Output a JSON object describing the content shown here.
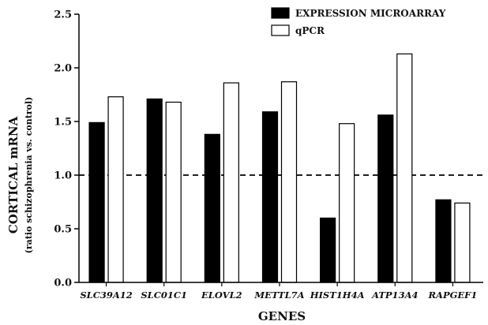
{
  "chart_data": {
    "type": "bar",
    "xlabel": "GENES",
    "ylabel": "CORTICAL mRNA",
    "ylabel_sub": "(ratio schizophrenia vs. control)",
    "categories": [
      "SLC39A12",
      "SLC01C1",
      "ELOVL2",
      "METTL7A",
      "HIST1H4A",
      "ATP13A4",
      "RAPGEF1"
    ],
    "series": [
      {
        "name": "EXPRESSION MICROARRAY",
        "values": [
          1.49,
          1.71,
          1.38,
          1.59,
          0.6,
          1.56,
          0.77
        ],
        "color": "#000000"
      },
      {
        "name": "qPCR",
        "values": [
          1.73,
          1.68,
          1.86,
          1.87,
          1.48,
          2.13,
          0.74
        ],
        "color": "#ffffff"
      }
    ],
    "ylim": [
      0,
      2.5
    ],
    "yticks": [
      "0.0",
      "0.5",
      "1.0",
      "1.5",
      "2.0",
      "2.5"
    ],
    "reference_line": 1.0,
    "grid": false,
    "legend_position": "top-right"
  }
}
